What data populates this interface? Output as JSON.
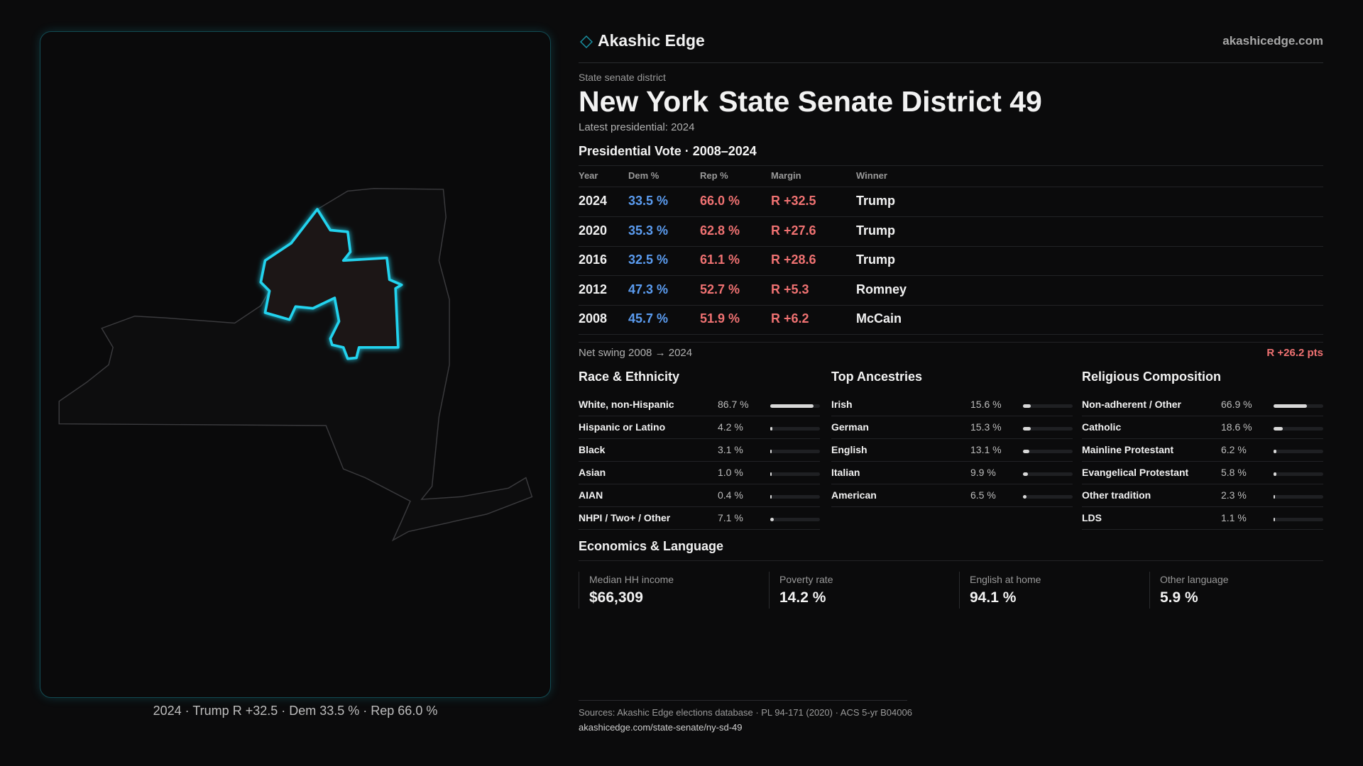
{
  "brand": {
    "name": "Akashic Edge",
    "site": "akashicedge.com"
  },
  "header": {
    "kicker": "State senate district",
    "state": "New York",
    "district": "State Senate District 49",
    "latest": "Latest presidential: 2024"
  },
  "map_caption": "2024 · Trump R +32.5 · Dem 33.5 % · Rep 66.0 %",
  "vote": {
    "title": "Presidential Vote · 2008–2024",
    "columns": [
      "Year",
      "Dem %",
      "Rep %",
      "Margin",
      "Winner"
    ],
    "rows": [
      [
        "2024",
        "33.5 %",
        "66.0 %",
        "R +32.5",
        "Trump"
      ],
      [
        "2020",
        "35.3 %",
        "62.8 %",
        "R +27.6",
        "Trump"
      ],
      [
        "2016",
        "32.5 %",
        "61.1 %",
        "R +28.6",
        "Trump"
      ],
      [
        "2012",
        "47.3 %",
        "52.7 %",
        "R +5.3",
        "Romney"
      ],
      [
        "2008",
        "45.7 %",
        "51.9 %",
        "R +6.2",
        "McCain"
      ]
    ],
    "swing_label": "Net swing 2008 → 2024",
    "swing_value": "R +26.2 pts"
  },
  "sections": [
    {
      "title": "Race & Ethnicity",
      "items": [
        {
          "name": "White, non-Hispanic",
          "value": 86.7,
          "value_label": "86.7 %"
        },
        {
          "name": "Hispanic or Latino",
          "value": 4.2,
          "value_label": "4.2 %"
        },
        {
          "name": "Black",
          "value": 3.1,
          "value_label": "3.1 %"
        },
        {
          "name": "Asian",
          "value": 1.0,
          "value_label": "1.0 %"
        },
        {
          "name": "AIAN",
          "value": 0.4,
          "value_label": "0.4 %"
        },
        {
          "name": "NHPI / Two+ / Other",
          "value": 7.1,
          "value_label": "7.1 %"
        }
      ]
    },
    {
      "title": "Top Ancestries",
      "items": [
        {
          "name": "Irish",
          "value": 15.6,
          "value_label": "15.6 %"
        },
        {
          "name": "German",
          "value": 15.3,
          "value_label": "15.3 %"
        },
        {
          "name": "English",
          "value": 13.1,
          "value_label": "13.1 %"
        },
        {
          "name": "Italian",
          "value": 9.9,
          "value_label": "9.9 %"
        },
        {
          "name": "American",
          "value": 6.5,
          "value_label": "6.5 %"
        }
      ]
    },
    {
      "title": "Religious Composition",
      "items": [
        {
          "name": "Non-adherent / Other",
          "value": 66.9,
          "value_label": "66.9 %"
        },
        {
          "name": "Catholic",
          "value": 18.6,
          "value_label": "18.6 %"
        },
        {
          "name": "Mainline Protestant",
          "value": 6.2,
          "value_label": "6.2 %"
        },
        {
          "name": "Evangelical Protestant",
          "value": 5.8,
          "value_label": "5.8 %"
        },
        {
          "name": "Other tradition",
          "value": 2.3,
          "value_label": "2.3 %"
        },
        {
          "name": "LDS",
          "value": 1.1,
          "value_label": "1.1 %"
        }
      ]
    }
  ],
  "economics": {
    "title": "Economics & Language",
    "cards": [
      {
        "label": "Median HH income",
        "value": "$66,309"
      },
      {
        "label": "Poverty rate",
        "value": "14.2 %"
      },
      {
        "label": "English at home",
        "value": "94.1 %"
      },
      {
        "label": "Other language",
        "value": "5.9 %"
      }
    ]
  },
  "footer": {
    "sources": "Sources: Akashic Edge elections database · PL 94-171 (2020) · ACS 5-yr B04006",
    "url": "akashicedge.com/state-senate/ny-sd-49"
  }
}
